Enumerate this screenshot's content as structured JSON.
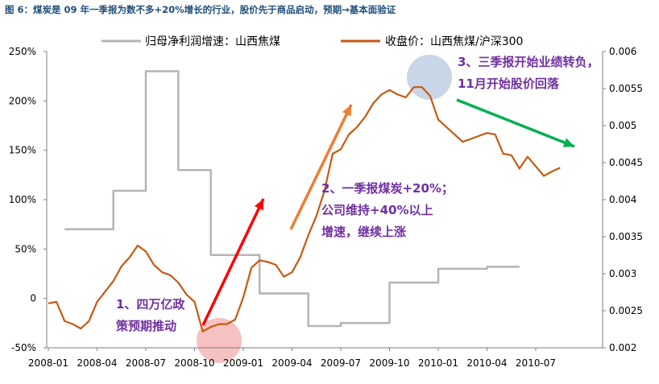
{
  "title": "图 6：煤炭是 09 年一季报为数不多+20%增长的行业，股价先于商品启动，预期→基本面验证",
  "chart_data": {
    "type": "line",
    "x_ticks": [
      "2008-01",
      "2008-04",
      "2008-07",
      "2008-10",
      "2009-01",
      "2009-04",
      "2009-07",
      "2009-10",
      "2010-01",
      "2010-04",
      "2010-07"
    ],
    "y_left_ticks": [
      "250%",
      "200%",
      "150%",
      "100%",
      "50%",
      "0",
      "-50%"
    ],
    "y_right_ticks": [
      "0.006",
      "0.0055",
      "0.005",
      "0.0045",
      "0.004",
      "0.0035",
      "0.003",
      "0.0025",
      "0.002"
    ],
    "ylim_left": [
      -50,
      250
    ],
    "ylim_right": [
      0.002,
      0.006
    ],
    "series": [
      {
        "name": "归母净利润增速：山西焦煤",
        "color": "#b4b4b4",
        "axis": "left",
        "step": true,
        "x_unit": "months from 2008-01",
        "points": [
          [
            1,
            70
          ],
          [
            4,
            70
          ],
          [
            4,
            109
          ],
          [
            6,
            109
          ],
          [
            6,
            230
          ],
          [
            8,
            230
          ],
          [
            8,
            130
          ],
          [
            10,
            130
          ],
          [
            10,
            44
          ],
          [
            13,
            44
          ],
          [
            13,
            5
          ],
          [
            16,
            5
          ],
          [
            16,
            -28
          ],
          [
            18,
            -28
          ],
          [
            18,
            -25
          ],
          [
            21,
            -25
          ],
          [
            21,
            16
          ],
          [
            24,
            16
          ],
          [
            24,
            30
          ],
          [
            27,
            30
          ],
          [
            27,
            32
          ],
          [
            29,
            32
          ]
        ]
      },
      {
        "name": "收盘价：山西焦煤/沪深300",
        "color": "#c55a11",
        "axis": "right",
        "step": false,
        "x_unit": "months from 2008-01",
        "points": [
          [
            0,
            0.0026
          ],
          [
            0.5,
            0.00262
          ],
          [
            1,
            0.00236
          ],
          [
            1.5,
            0.00232
          ],
          [
            2,
            0.00226
          ],
          [
            2.5,
            0.00236
          ],
          [
            3,
            0.00262
          ],
          [
            3.5,
            0.00276
          ],
          [
            4,
            0.0029
          ],
          [
            4.5,
            0.0031
          ],
          [
            5,
            0.00322
          ],
          [
            5.5,
            0.00338
          ],
          [
            6,
            0.0033
          ],
          [
            6.5,
            0.00312
          ],
          [
            7,
            0.00302
          ],
          [
            7.5,
            0.00298
          ],
          [
            8,
            0.00288
          ],
          [
            8.5,
            0.00272
          ],
          [
            9,
            0.00262
          ],
          [
            9.5,
            0.00222
          ],
          [
            10,
            0.00228
          ],
          [
            10.5,
            0.00232
          ],
          [
            11,
            0.00232
          ],
          [
            11.5,
            0.00238
          ],
          [
            12,
            0.00268
          ],
          [
            12.5,
            0.00308
          ],
          [
            13,
            0.00318
          ],
          [
            13.5,
            0.00316
          ],
          [
            14,
            0.00312
          ],
          [
            14.5,
            0.00296
          ],
          [
            15,
            0.00302
          ],
          [
            15.5,
            0.00322
          ],
          [
            16,
            0.00352
          ],
          [
            16.5,
            0.00378
          ],
          [
            17,
            0.00412
          ],
          [
            17.5,
            0.00462
          ],
          [
            18,
            0.00468
          ],
          [
            18.5,
            0.00488
          ],
          [
            19,
            0.00498
          ],
          [
            19.5,
            0.00512
          ],
          [
            20,
            0.0053
          ],
          [
            20.5,
            0.00542
          ],
          [
            21,
            0.00548
          ],
          [
            21.5,
            0.00542
          ],
          [
            22,
            0.00538
          ],
          [
            22.5,
            0.00552
          ],
          [
            23,
            0.00552
          ],
          [
            23.5,
            0.0054
          ],
          [
            24,
            0.00508
          ],
          [
            24.5,
            0.00498
          ],
          [
            25,
            0.00488
          ],
          [
            25.5,
            0.00478
          ],
          [
            26,
            0.00482
          ],
          [
            26.5,
            0.00486
          ],
          [
            27,
            0.0049
          ],
          [
            27.5,
            0.00488
          ],
          [
            28,
            0.00462
          ],
          [
            28.5,
            0.0046
          ],
          [
            29,
            0.00442
          ],
          [
            29.5,
            0.00458
          ],
          [
            30,
            0.00445
          ],
          [
            30.5,
            0.00432
          ],
          [
            31,
            0.00438
          ],
          [
            31.5,
            0.00443
          ]
        ]
      }
    ],
    "annotations": [
      {
        "lines": [
          "1、四万亿政",
          "策预期推动"
        ]
      },
      {
        "lines": [
          "2、一季报煤炭+20%；",
          "公司维持+40%以上",
          "增速，继续上涨"
        ]
      },
      {
        "lines": [
          "3、三季报开始业绩转负，",
          "11月开始股价回落"
        ]
      }
    ],
    "arrow_colors": {
      "red": "#ff0000",
      "orange": "#ed7d31",
      "green": "#00b050"
    },
    "highlight_colors": {
      "pink": "#f4b6b6",
      "blue": "#bfcfe4"
    },
    "grid": false,
    "legend_position": "top"
  }
}
